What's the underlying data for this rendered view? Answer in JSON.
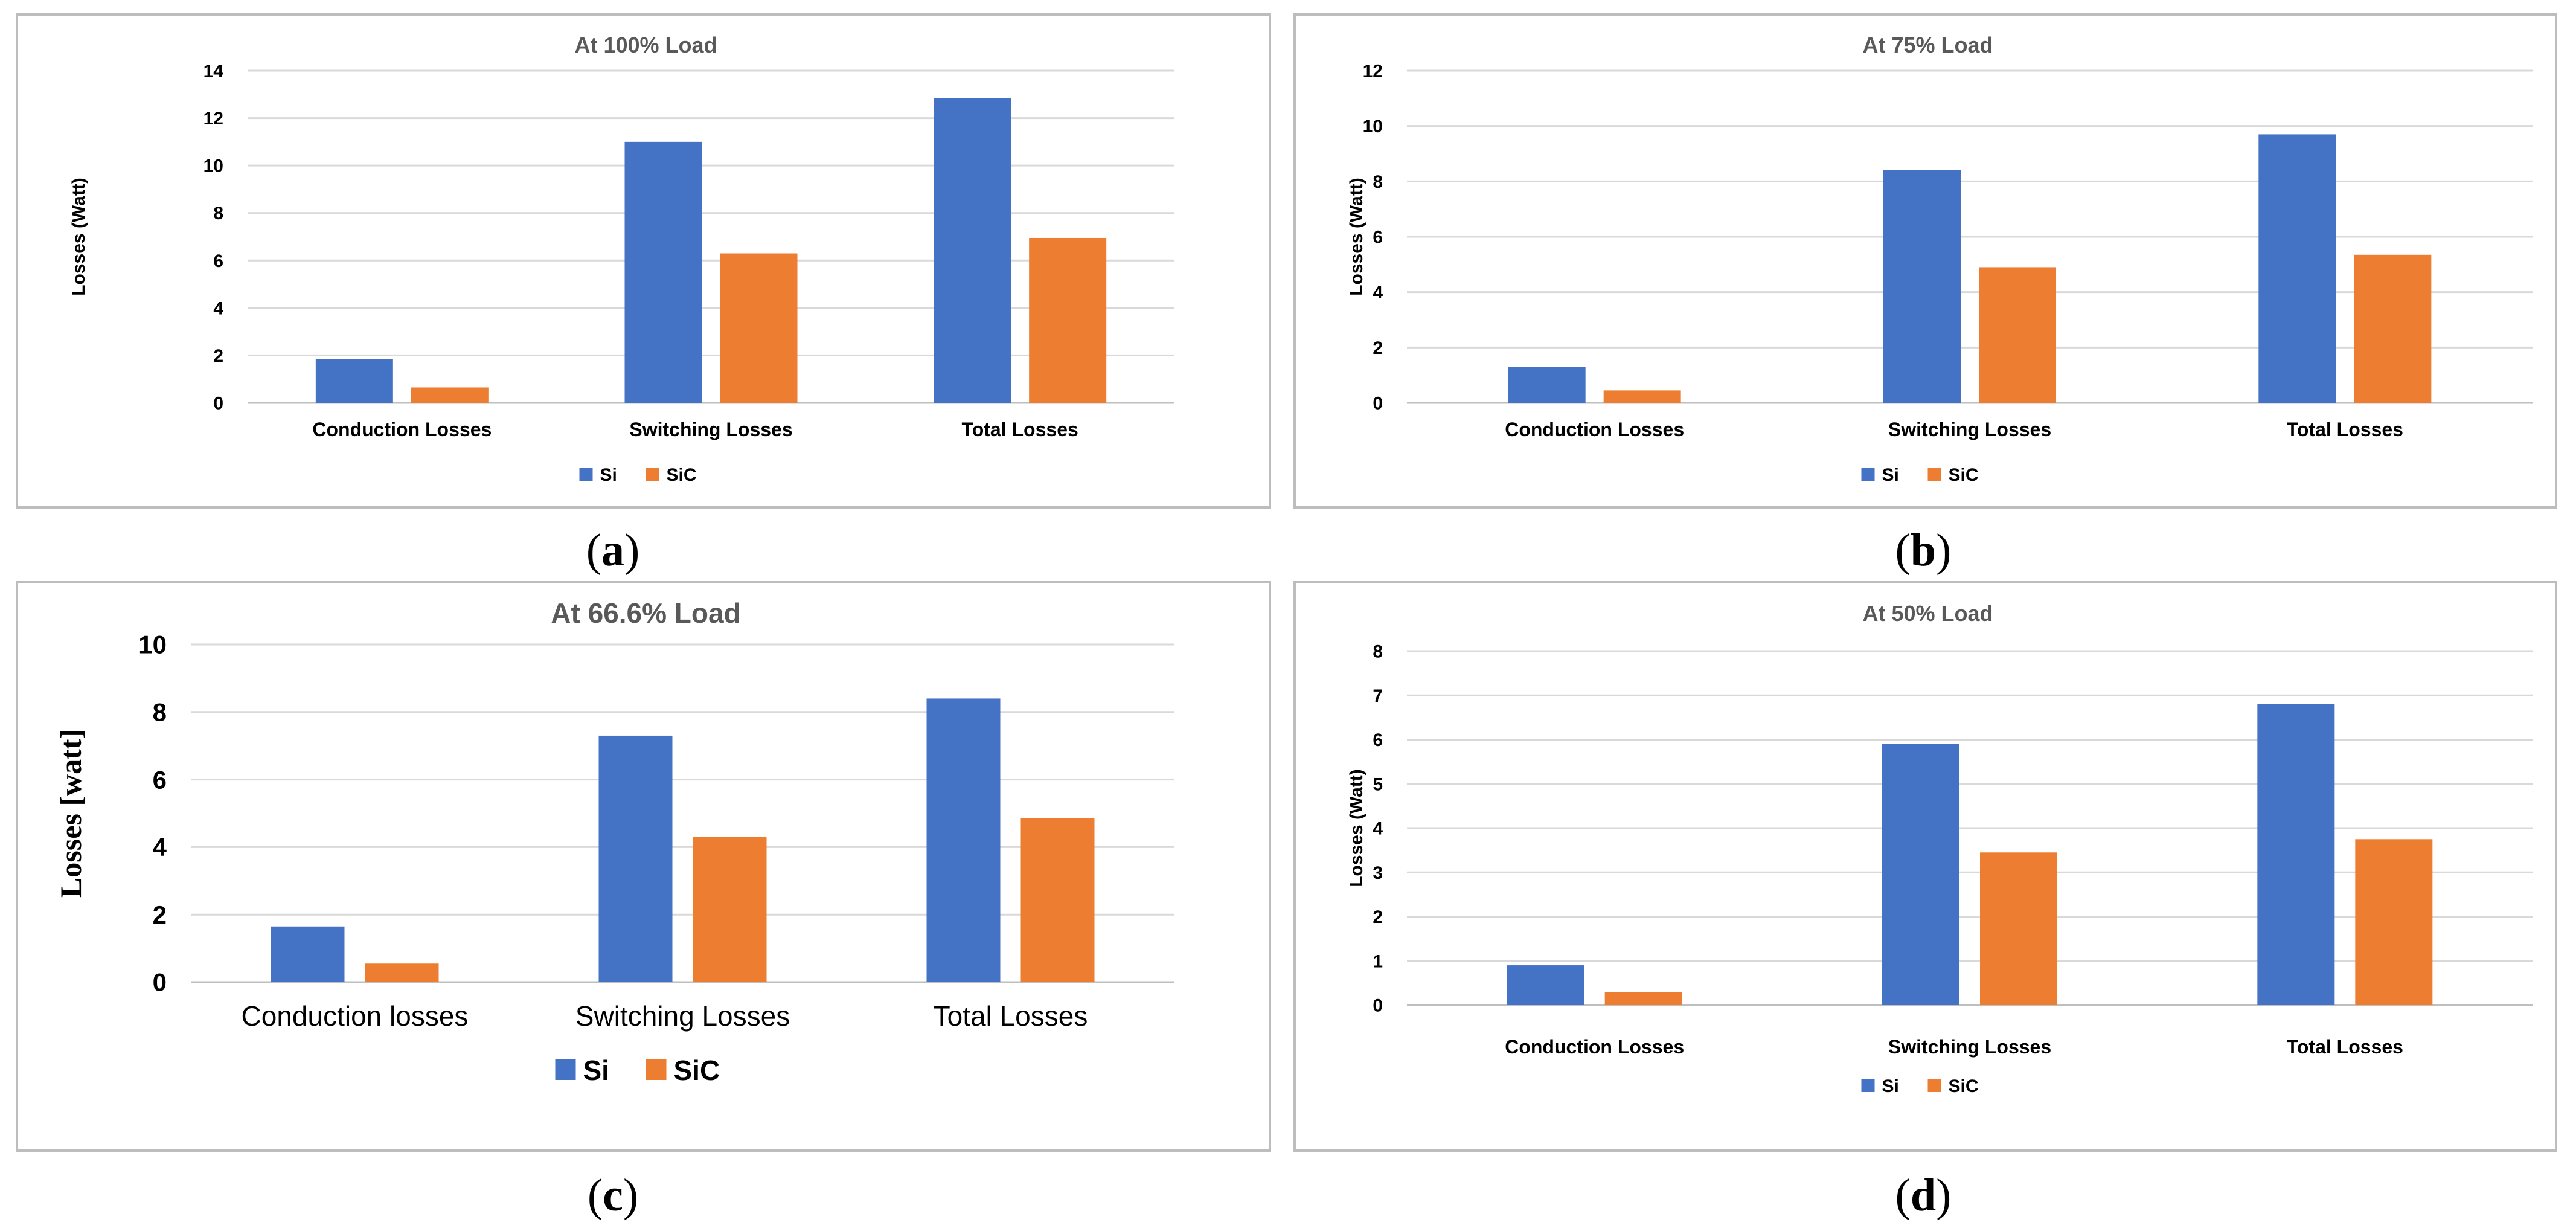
{
  "colors": {
    "si": "#4472C4",
    "sic": "#ED7D31",
    "grid": "#d9d9d9",
    "axis": "#bfbfbf"
  },
  "chart_data": [
    {
      "id": "a",
      "type": "bar",
      "title": "At 100% Load",
      "caption": "a",
      "ylabel": "Losses (Watt)",
      "categories": [
        "Conduction Losses",
        "Switching Losses",
        "Total Losses"
      ],
      "series": [
        {
          "name": "Si",
          "values": [
            1.85,
            11.0,
            12.85
          ]
        },
        {
          "name": "SiC",
          "values": [
            0.65,
            6.3,
            6.95
          ]
        }
      ],
      "ylim": [
        0,
        14
      ],
      "yticks": [
        0,
        2,
        4,
        6,
        8,
        10,
        12,
        14
      ],
      "legend": "bottom"
    },
    {
      "id": "b",
      "type": "bar",
      "title": "At 75% Load",
      "caption": "b",
      "ylabel": "Losses (Watt)",
      "categories": [
        "Conduction Losses",
        "Switching Losses",
        "Total Losses"
      ],
      "series": [
        {
          "name": "Si",
          "values": [
            1.3,
            8.4,
            9.7
          ]
        },
        {
          "name": "SiC",
          "values": [
            0.45,
            4.9,
            5.35
          ]
        }
      ],
      "ylim": [
        0,
        12
      ],
      "yticks": [
        0,
        2,
        4,
        6,
        8,
        10,
        12
      ],
      "legend": "bottom"
    },
    {
      "id": "c",
      "type": "bar",
      "title": "At 66.6% Load",
      "caption": "c",
      "ylabel": "Losses [watt]",
      "categories": [
        "Conduction losses",
        "Switching Losses",
        "Total Losses"
      ],
      "series": [
        {
          "name": "Si",
          "values": [
            1.65,
            7.3,
            8.4
          ]
        },
        {
          "name": "SiC",
          "values": [
            0.55,
            4.3,
            4.85
          ]
        }
      ],
      "ylim": [
        0,
        10
      ],
      "yticks": [
        0,
        2,
        4,
        6,
        8,
        10
      ],
      "legend": "bottom"
    },
    {
      "id": "d",
      "type": "bar",
      "title": "At 50% Load",
      "caption": "d",
      "ylabel": "Losses (Watt)",
      "categories": [
        "Conduction Losses",
        "Switching Losses",
        "Total Losses"
      ],
      "series": [
        {
          "name": "Si",
          "values": [
            0.9,
            5.9,
            6.8
          ]
        },
        {
          "name": "SiC",
          "values": [
            0.3,
            3.45,
            3.75
          ]
        }
      ],
      "ylim": [
        0,
        8
      ],
      "yticks": [
        0,
        1,
        2,
        3,
        4,
        5,
        6,
        7,
        8
      ],
      "legend": "bottom"
    }
  ]
}
